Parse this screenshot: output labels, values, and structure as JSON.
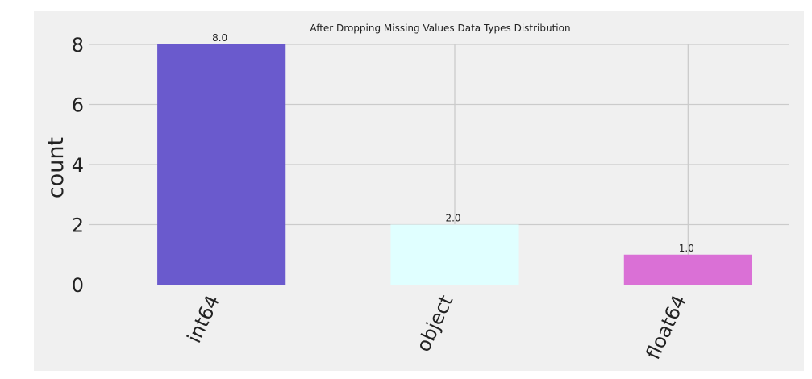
{
  "chart_data": {
    "type": "bar",
    "title": "After Dropping Missing Values Data Types Distribution",
    "xlabel": "",
    "ylabel": "count",
    "categories": [
      "int64",
      "object",
      "float64"
    ],
    "values": [
      8,
      2,
      1
    ],
    "data_labels": [
      "8.0",
      "2.0",
      "1.0"
    ],
    "yticks": [
      0,
      2,
      4,
      6,
      8
    ],
    "ylim": [
      0,
      8
    ],
    "grid": true,
    "legend": "none",
    "colors": [
      "#6A5ACD",
      "#E0FFFF",
      "#DA70D6"
    ],
    "background": "#F0F0F0",
    "grid_color": "#CBCBCB"
  }
}
